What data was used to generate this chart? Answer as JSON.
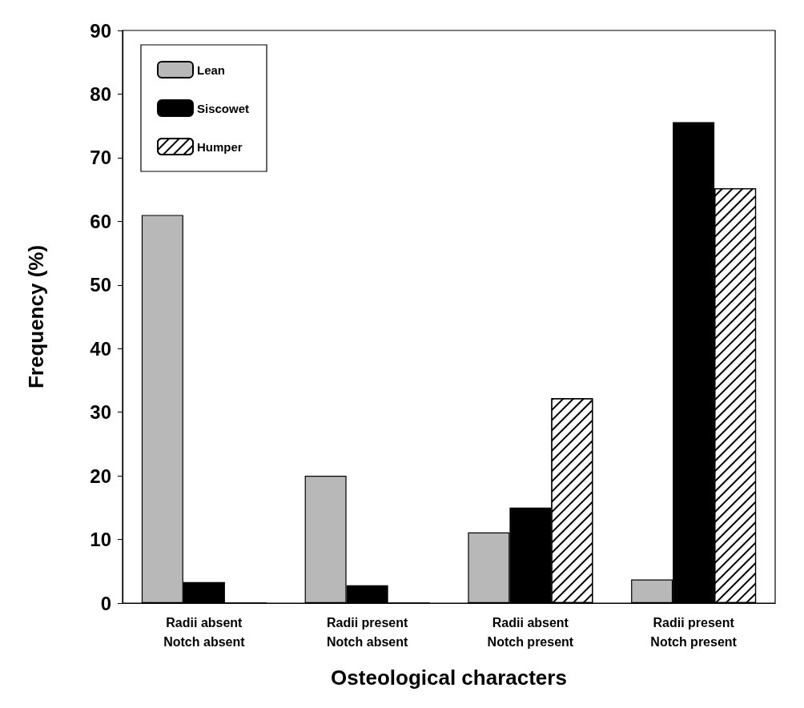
{
  "chart_data": {
    "type": "bar",
    "xlabel": "Osteological characters",
    "ylabel": "Frequency (%)",
    "categories": [
      "Radii absent\nNotch absent",
      "Radii present\nNotch absent",
      "Radii absent\nNotch present",
      "Radii present\nNotch present"
    ],
    "series": [
      {
        "name": "Lean",
        "color": "#b8b8b8",
        "values": [
          61,
          20,
          11.1,
          3.7
        ]
      },
      {
        "name": "Siscowet",
        "color": "#000000",
        "values": [
          3.3,
          2.8,
          15,
          75.6
        ]
      },
      {
        "name": "Humper",
        "color": "#ffffff",
        "values": [
          0,
          0,
          32.2,
          65.2
        ]
      }
    ],
    "ylim": [
      0,
      90
    ],
    "yticks": [
      0,
      10,
      20,
      30,
      40,
      50,
      60,
      70,
      80,
      90
    ],
    "grid": false,
    "legend": "top left"
  }
}
